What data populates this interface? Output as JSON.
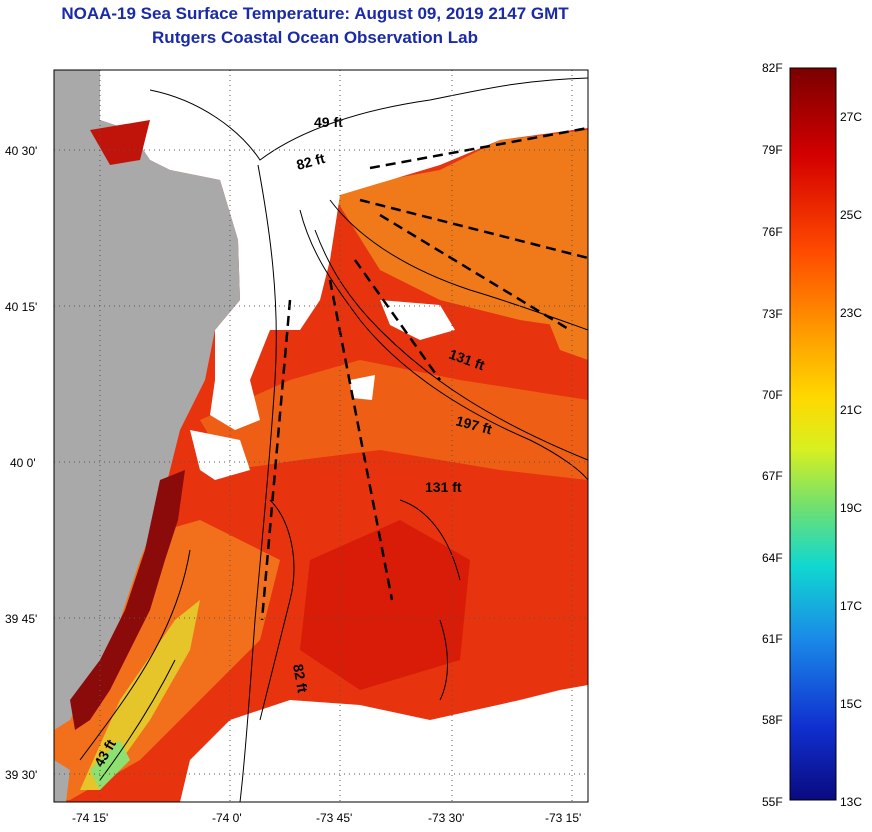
{
  "header": {
    "title": "NOAA-19 Sea Surface Temperature:  August 09, 2019 2147 GMT",
    "subtitle": "Rutgers Coastal Ocean Observation Lab"
  },
  "map": {
    "lat_labels": [
      "40 30'",
      "40 15'",
      "40 0'",
      "39 45'",
      "39 30'"
    ],
    "lon_labels": [
      "-74 15'",
      "-74 0'",
      "-73 45'",
      "-73 30'",
      "-73 15'"
    ],
    "depth_labels": [
      {
        "id": "depth-49ft",
        "text": "49 ft"
      },
      {
        "id": "depth-82ft-north",
        "text": "82 ft"
      },
      {
        "id": "depth-131ft-east",
        "text": "131 ft"
      },
      {
        "id": "depth-197ft",
        "text": "197 ft"
      },
      {
        "id": "depth-131ft-center",
        "text": "131 ft"
      },
      {
        "id": "depth-82ft-south",
        "text": "82 ft"
      },
      {
        "id": "depth-43ft",
        "text": "43 ft"
      }
    ],
    "colors": {
      "land": "#a9a9a9",
      "cloud": "#ffffff",
      "warm": "#e22a0c",
      "hot": "#8b0a0a"
    }
  },
  "colorbar": {
    "f_labels": [
      "82F",
      "79F",
      "76F",
      "73F",
      "70F",
      "67F",
      "64F",
      "61F",
      "58F",
      "55F"
    ],
    "c_labels": [
      "27C",
      "25C",
      "23C",
      "21C",
      "19C",
      "17C",
      "15C",
      "13C"
    ]
  }
}
